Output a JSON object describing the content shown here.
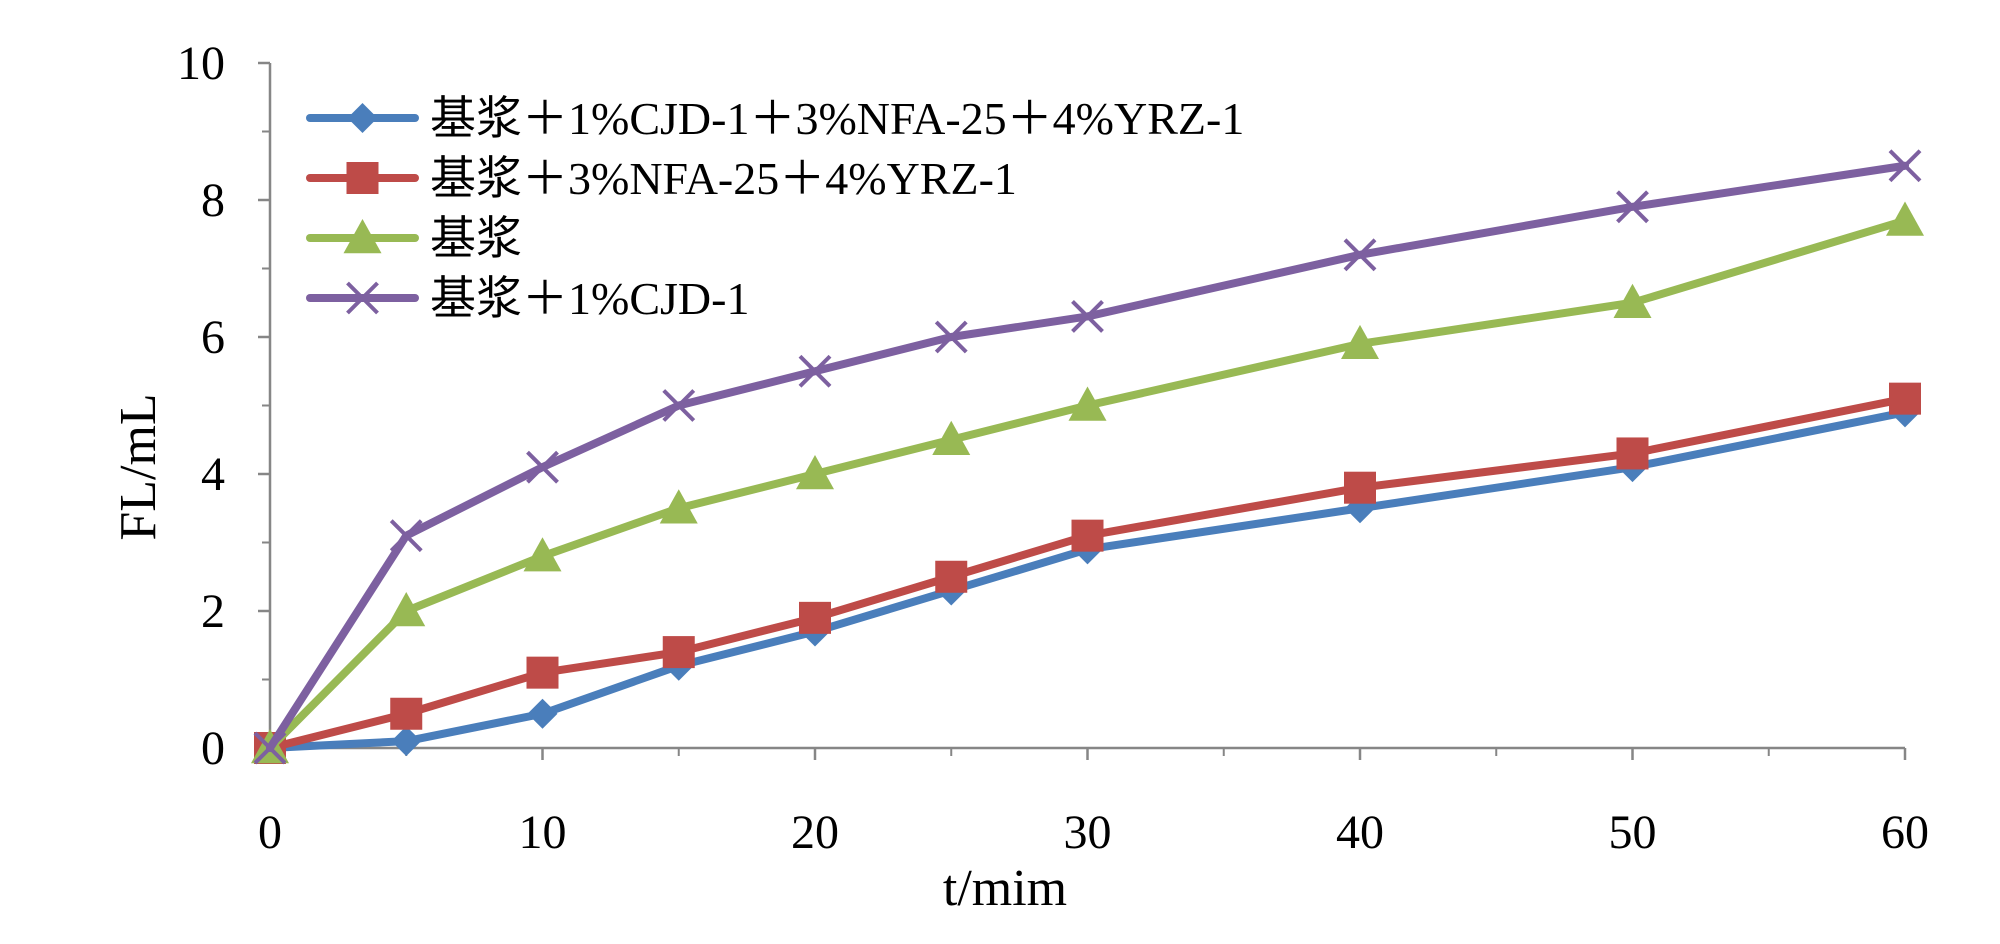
{
  "chart_data": {
    "type": "line",
    "title": "",
    "xlabel": "t/mim",
    "ylabel": "FL/mL",
    "x": [
      0,
      5,
      10,
      15,
      20,
      25,
      30,
      40,
      50,
      60
    ],
    "xlim": [
      0,
      60
    ],
    "ylim": [
      0,
      10
    ],
    "x_ticks": [
      0,
      10,
      20,
      30,
      40,
      50,
      60
    ],
    "x_tick_labels": [
      "0",
      "10",
      "20",
      "30",
      "40",
      "50",
      "60"
    ],
    "y_ticks": [
      0,
      2,
      4,
      6,
      8,
      10
    ],
    "y_tick_labels": [
      "0",
      "2",
      "4",
      "6",
      "8",
      "10"
    ],
    "grid": false,
    "legend_position": "top-left",
    "series": [
      {
        "name": "基浆＋1%CJD-1＋3%NFA-25＋4%YRZ-1",
        "color": "#4a7ebb",
        "marker": "diamond",
        "values": [
          0,
          0.1,
          0.5,
          1.2,
          1.7,
          2.3,
          2.9,
          3.5,
          4.1,
          4.9
        ]
      },
      {
        "name": "基浆＋3%NFA-25＋4%YRZ-1",
        "color": "#be4b48",
        "marker": "square",
        "values": [
          0,
          0.5,
          1.1,
          1.4,
          1.9,
          2.5,
          3.1,
          3.8,
          4.3,
          5.1
        ]
      },
      {
        "name": "基浆",
        "color": "#98b954",
        "marker": "triangle",
        "values": [
          0,
          2.0,
          2.8,
          3.5,
          4.0,
          4.5,
          5.0,
          5.9,
          6.5,
          7.7
        ]
      },
      {
        "name": "基浆＋1%CJD-1",
        "color": "#7d60a0",
        "marker": "x",
        "values": [
          0,
          3.1,
          4.1,
          5.0,
          5.5,
          6.0,
          6.3,
          7.2,
          7.9,
          8.5
        ]
      }
    ]
  }
}
